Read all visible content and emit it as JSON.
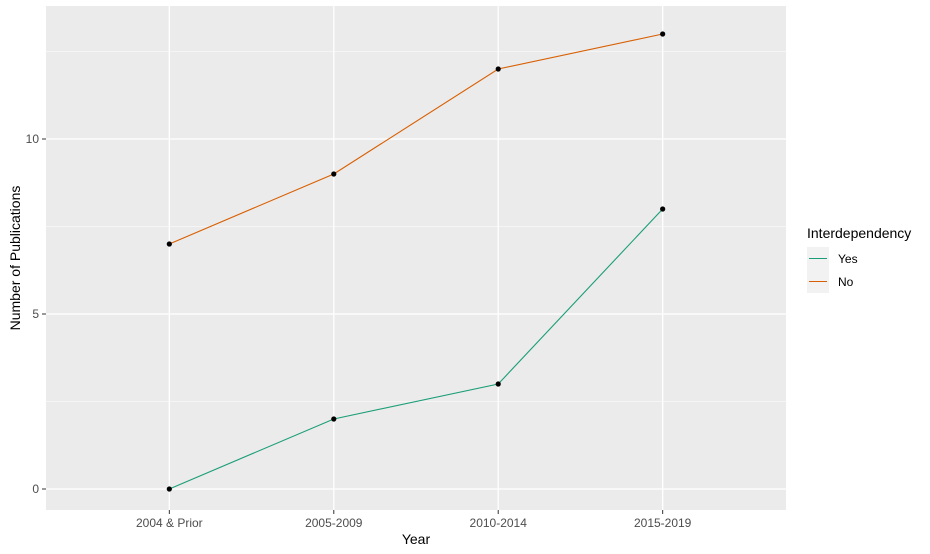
{
  "chart_data": {
    "type": "line",
    "xlabel": "Year",
    "ylabel": "Number of Publications",
    "categories": [
      "2004 & Prior",
      "2005-2009",
      "2010-2014",
      "2015-2019"
    ],
    "ylim": [
      -0.6,
      13.8
    ],
    "yticks": [
      0,
      5,
      10
    ],
    "ytick_labels": [
      "0",
      "5",
      "10"
    ],
    "grid": true,
    "legend": {
      "title": "Interdependency",
      "position": "right"
    },
    "series": [
      {
        "name": "Yes",
        "color": "#1b9e77",
        "values": [
          0,
          2,
          3,
          8
        ]
      },
      {
        "name": "No",
        "color": "#d95f02",
        "values": [
          7,
          9,
          12,
          13
        ]
      }
    ],
    "point_color": "#000000",
    "panel_background": "#ebebeb"
  }
}
